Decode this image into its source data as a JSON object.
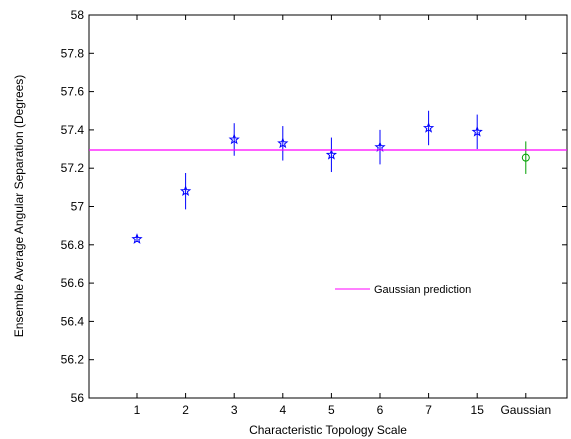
{
  "chart_data": {
    "type": "scatter",
    "xlabel": "Characteristic Topology Scale",
    "ylabel": "Ensemble Average Angular Separation (Degrees)",
    "categories": [
      "1",
      "2",
      "3",
      "4",
      "5",
      "6",
      "7",
      "15",
      "Gaussian"
    ],
    "ylim": [
      56,
      58
    ],
    "yticks": [
      "56",
      "56.2",
      "56.4",
      "56.6",
      "56.8",
      "57",
      "57.2",
      "57.4",
      "57.6",
      "57.8",
      "58"
    ],
    "grid": false,
    "legend": {
      "position": "center-right",
      "entries": [
        "Gaussian prediction"
      ]
    },
    "series": [
      {
        "marker": "star",
        "color": "#0000ff",
        "points": [
          {
            "x": "1",
            "y": 56.83,
            "err": 0.015
          },
          {
            "x": "2",
            "y": 57.08,
            "err": 0.095
          },
          {
            "x": "3",
            "y": 57.35,
            "err": 0.085
          },
          {
            "x": "4",
            "y": 57.33,
            "err": 0.09
          },
          {
            "x": "5",
            "y": 57.27,
            "err": 0.09
          },
          {
            "x": "6",
            "y": 57.31,
            "err": 0.09
          },
          {
            "x": "7",
            "y": 57.41,
            "err": 0.09
          },
          {
            "x": "15",
            "y": 57.39,
            "err": 0.09
          }
        ]
      },
      {
        "marker": "circle",
        "color": "#00a000",
        "points": [
          {
            "x": "Gaussian",
            "y": 57.255,
            "err": 0.085
          }
        ]
      },
      {
        "name": "Gaussian prediction",
        "type": "hline",
        "color": "#ff00ff",
        "y": 57.295
      }
    ]
  }
}
